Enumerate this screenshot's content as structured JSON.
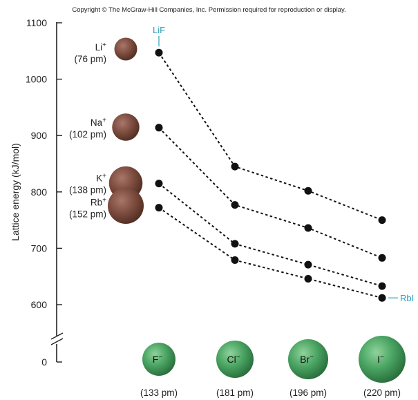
{
  "copyright": "Copyright © The McGraw-Hill Companies, Inc. Permission required for reproduction or display.",
  "chart_data": {
    "type": "line",
    "ylabel": "Lattice energy (kJ/mol)",
    "xlabel": "",
    "ylim": [
      600,
      1100
    ],
    "axis_break": true,
    "zero_label": "0",
    "yticks": [
      600,
      700,
      800,
      900,
      1000,
      1100
    ],
    "categories": [
      "F⁻",
      "Cl⁻",
      "Br⁻",
      "I⁻"
    ],
    "anions": [
      {
        "symbol": "F",
        "sup": "−",
        "size": "(133 pm)",
        "radius_pm": 133
      },
      {
        "symbol": "Cl",
        "sup": "−",
        "size": "(181 pm)",
        "radius_pm": 181
      },
      {
        "symbol": "Br",
        "sup": "−",
        "size": "(196 pm)",
        "radius_pm": 196
      },
      {
        "symbol": "I",
        "sup": "−",
        "size": "(220 pm)",
        "radius_pm": 220
      }
    ],
    "series": [
      {
        "name": "Li",
        "sup": "+",
        "size": "(76 pm)",
        "radius_pm": 76,
        "values": [
          1047,
          845,
          802,
          750
        ]
      },
      {
        "name": "Na",
        "sup": "+",
        "size": "(102 pm)",
        "radius_pm": 102,
        "values": [
          914,
          777,
          736,
          683
        ]
      },
      {
        "name": "K",
        "sup": "+",
        "size": "(138 pm)",
        "radius_pm": 138,
        "values": [
          815,
          708,
          671,
          633
        ]
      },
      {
        "name": "Rb",
        "sup": "+",
        "size": "(152 pm)",
        "radius_pm": 152,
        "values": [
          772,
          679,
          646,
          612
        ]
      }
    ],
    "annotations": [
      {
        "text": "LiF",
        "series": 0,
        "point": 0
      },
      {
        "text": "RbI",
        "series": 3,
        "point": 3
      }
    ],
    "grid": false,
    "line_style": "dotted",
    "colors": {
      "cation": "#7a4a3c",
      "anion": "#3d8a52",
      "point": "#111111",
      "callout": "#2a9fc0"
    }
  }
}
